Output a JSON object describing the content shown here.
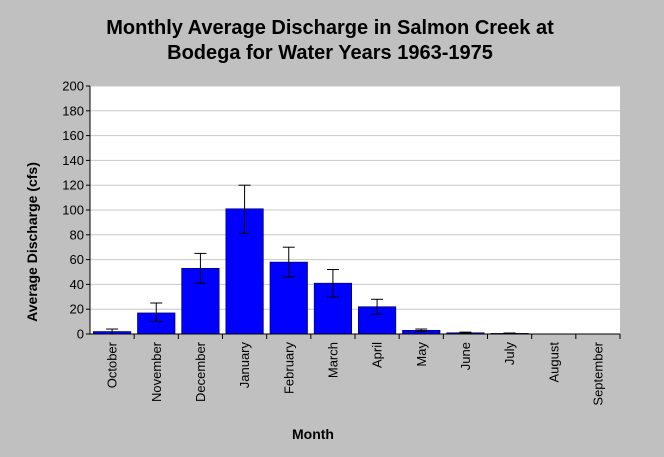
{
  "chart_data": {
    "type": "bar",
    "title": "Monthly Average Discharge in Salmon Creek at Bodega for Water Years 1963-1975",
    "title_lines": [
      "Monthly Average Discharge in Salmon Creek at",
      "Bodega for Water Years 1963-1975"
    ],
    "xlabel": "Month",
    "ylabel": "Average Discharge (cfs)",
    "ylim": [
      0,
      200
    ],
    "yticks": [
      0,
      20,
      40,
      60,
      80,
      100,
      120,
      140,
      160,
      180,
      200
    ],
    "grid": true,
    "legend": "none",
    "bar_color": "#0000ff",
    "categories": [
      "October",
      "November",
      "December",
      "January",
      "February",
      "March",
      "April",
      "May",
      "June",
      "July",
      "August",
      "September"
    ],
    "values": [
      2,
      17,
      53,
      101,
      58,
      41,
      22,
      3,
      1,
      0.5,
      0,
      0
    ],
    "error_low": [
      0,
      10,
      41,
      81,
      46,
      30,
      16,
      2,
      0.5,
      0.2,
      0,
      0
    ],
    "error_high": [
      4,
      25,
      65,
      120,
      70,
      52,
      28,
      4,
      1.5,
      0.8,
      0,
      0
    ]
  }
}
